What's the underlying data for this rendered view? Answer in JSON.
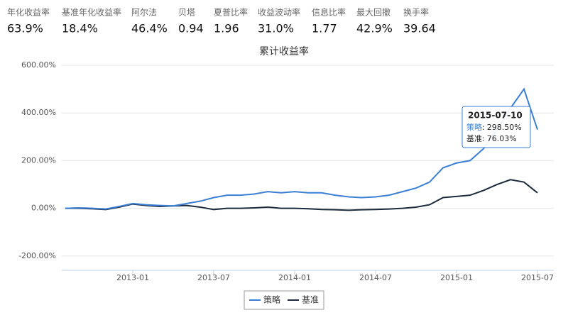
{
  "metrics": [
    {
      "label": "年化收益率",
      "value": "63.9%"
    },
    {
      "label": "基准年化收益率",
      "value": "18.4%"
    },
    {
      "label": "阿尔法",
      "value": "46.4%"
    },
    {
      "label": "贝塔",
      "value": "0.94"
    },
    {
      "label": "夏普比率",
      "value": "1.96"
    },
    {
      "label": "收益波动率",
      "value": "31.0%"
    },
    {
      "label": "信息比率",
      "value": "1.77"
    },
    {
      "label": "最大回撤",
      "value": "42.9%"
    },
    {
      "label": "换手率",
      "value": "39.64"
    }
  ],
  "chart_data": {
    "type": "line",
    "title": "累计收益率",
    "x": [
      "2012-08",
      "2012-09",
      "2012-10",
      "2012-11",
      "2012-12",
      "2013-01",
      "2013-02",
      "2013-03",
      "2013-04",
      "2013-05",
      "2013-06",
      "2013-07",
      "2013-08",
      "2013-09",
      "2013-10",
      "2013-11",
      "2013-12",
      "2014-01",
      "2014-02",
      "2014-03",
      "2014-04",
      "2014-05",
      "2014-06",
      "2014-07",
      "2014-08",
      "2014-09",
      "2014-10",
      "2014-11",
      "2014-12",
      "2015-01",
      "2015-02",
      "2015-03",
      "2015-04",
      "2015-05",
      "2015-06",
      "2015-07"
    ],
    "series": [
      {
        "name": "策略",
        "color": "#3a7fd5",
        "values": [
          0,
          2,
          0,
          -3,
          8,
          20,
          15,
          12,
          10,
          20,
          30,
          45,
          55,
          55,
          60,
          70,
          65,
          70,
          65,
          65,
          55,
          48,
          45,
          48,
          55,
          70,
          85,
          110,
          170,
          190,
          200,
          250,
          330,
          420,
          500,
          330
        ]
      },
      {
        "name": "基准",
        "color": "#1b2a3c",
        "values": [
          0,
          0,
          -2,
          -5,
          5,
          18,
          12,
          8,
          10,
          12,
          5,
          -5,
          0,
          0,
          2,
          5,
          0,
          0,
          -2,
          -5,
          -6,
          -8,
          -6,
          -5,
          -3,
          0,
          5,
          15,
          45,
          50,
          55,
          75,
          100,
          120,
          110,
          65
        ]
      }
    ],
    "xlim": [
      "2012-08",
      "2015-08"
    ],
    "xticks": [
      "2013-01",
      "2013-07",
      "2014-01",
      "2014-07",
      "2015-01",
      "2015-07"
    ],
    "ylim": [
      -260,
      600
    ],
    "yticks": [
      {
        "value": -200,
        "label": "-200.00%"
      },
      {
        "value": 0,
        "label": "0.00%"
      },
      {
        "value": 200,
        "label": "200.00%"
      },
      {
        "value": 400,
        "label": "400.00%"
      },
      {
        "value": 600,
        "label": "600.00%"
      }
    ],
    "grid": true,
    "tooltip": {
      "date": "2015-07-10",
      "rows": [
        {
          "label": "策略",
          "value": "298.50%"
        },
        {
          "label": "基准",
          "value": "76.03%"
        }
      ]
    }
  }
}
